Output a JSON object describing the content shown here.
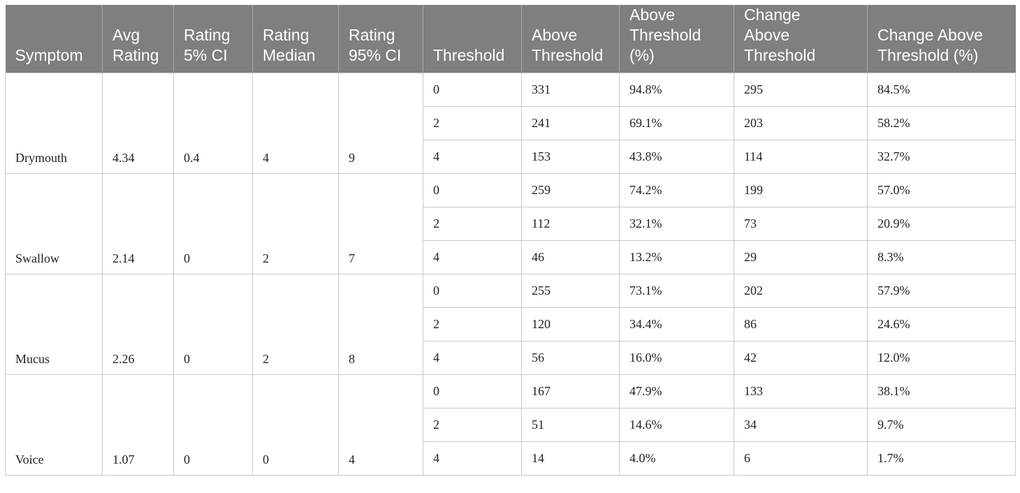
{
  "table": {
    "headers": [
      "Symptom",
      "Avg\nRating",
      "Rating\n5% CI",
      "Rating\nMedian",
      "Rating\n95% CI",
      "Threshold",
      "Above\nThreshold",
      "Above\nThreshold\n(%)",
      "Change\nAbove\nThreshold",
      "Change Above\nThreshold (%)"
    ],
    "groups": [
      {
        "symptom": "Drymouth",
        "avg_rating": "4.34",
        "ci5": "0.4",
        "median": "4",
        "ci95": "9",
        "rows": [
          {
            "threshold": "0",
            "above": "331",
            "above_pct": "94.8%",
            "change": "295",
            "change_pct": "84.5%"
          },
          {
            "threshold": "2",
            "above": "241",
            "above_pct": "69.1%",
            "change": "203",
            "change_pct": "58.2%"
          },
          {
            "threshold": "4",
            "above": "153",
            "above_pct": "43.8%",
            "change": "114",
            "change_pct": "32.7%"
          }
        ]
      },
      {
        "symptom": "Swallow",
        "avg_rating": "2.14",
        "ci5": "0",
        "median": "2",
        "ci95": "7",
        "rows": [
          {
            "threshold": "0",
            "above": "259",
            "above_pct": "74.2%",
            "change": "199",
            "change_pct": "57.0%"
          },
          {
            "threshold": "2",
            "above": "112",
            "above_pct": "32.1%",
            "change": "73",
            "change_pct": "20.9%"
          },
          {
            "threshold": "4",
            "above": "46",
            "above_pct": "13.2%",
            "change": "29",
            "change_pct": "8.3%"
          }
        ]
      },
      {
        "symptom": "Mucus",
        "avg_rating": "2.26",
        "ci5": "0",
        "median": "2",
        "ci95": "8",
        "rows": [
          {
            "threshold": "0",
            "above": "255",
            "above_pct": "73.1%",
            "change": "202",
            "change_pct": "57.9%"
          },
          {
            "threshold": "2",
            "above": "120",
            "above_pct": "34.4%",
            "change": "86",
            "change_pct": "24.6%"
          },
          {
            "threshold": "4",
            "above": "56",
            "above_pct": "16.0%",
            "change": "42",
            "change_pct": "12.0%"
          }
        ]
      },
      {
        "symptom": "Voice",
        "avg_rating": "1.07",
        "ci5": "0",
        "median": "0",
        "ci95": "4",
        "rows": [
          {
            "threshold": "0",
            "above": "167",
            "above_pct": "47.9%",
            "change": "133",
            "change_pct": "38.1%"
          },
          {
            "threshold": "2",
            "above": "51",
            "above_pct": "14.6%",
            "change": "34",
            "change_pct": "9.7%"
          },
          {
            "threshold": "4",
            "above": "14",
            "above_pct": "4.0%",
            "change": "6",
            "change_pct": "1.7%"
          }
        ]
      }
    ]
  }
}
